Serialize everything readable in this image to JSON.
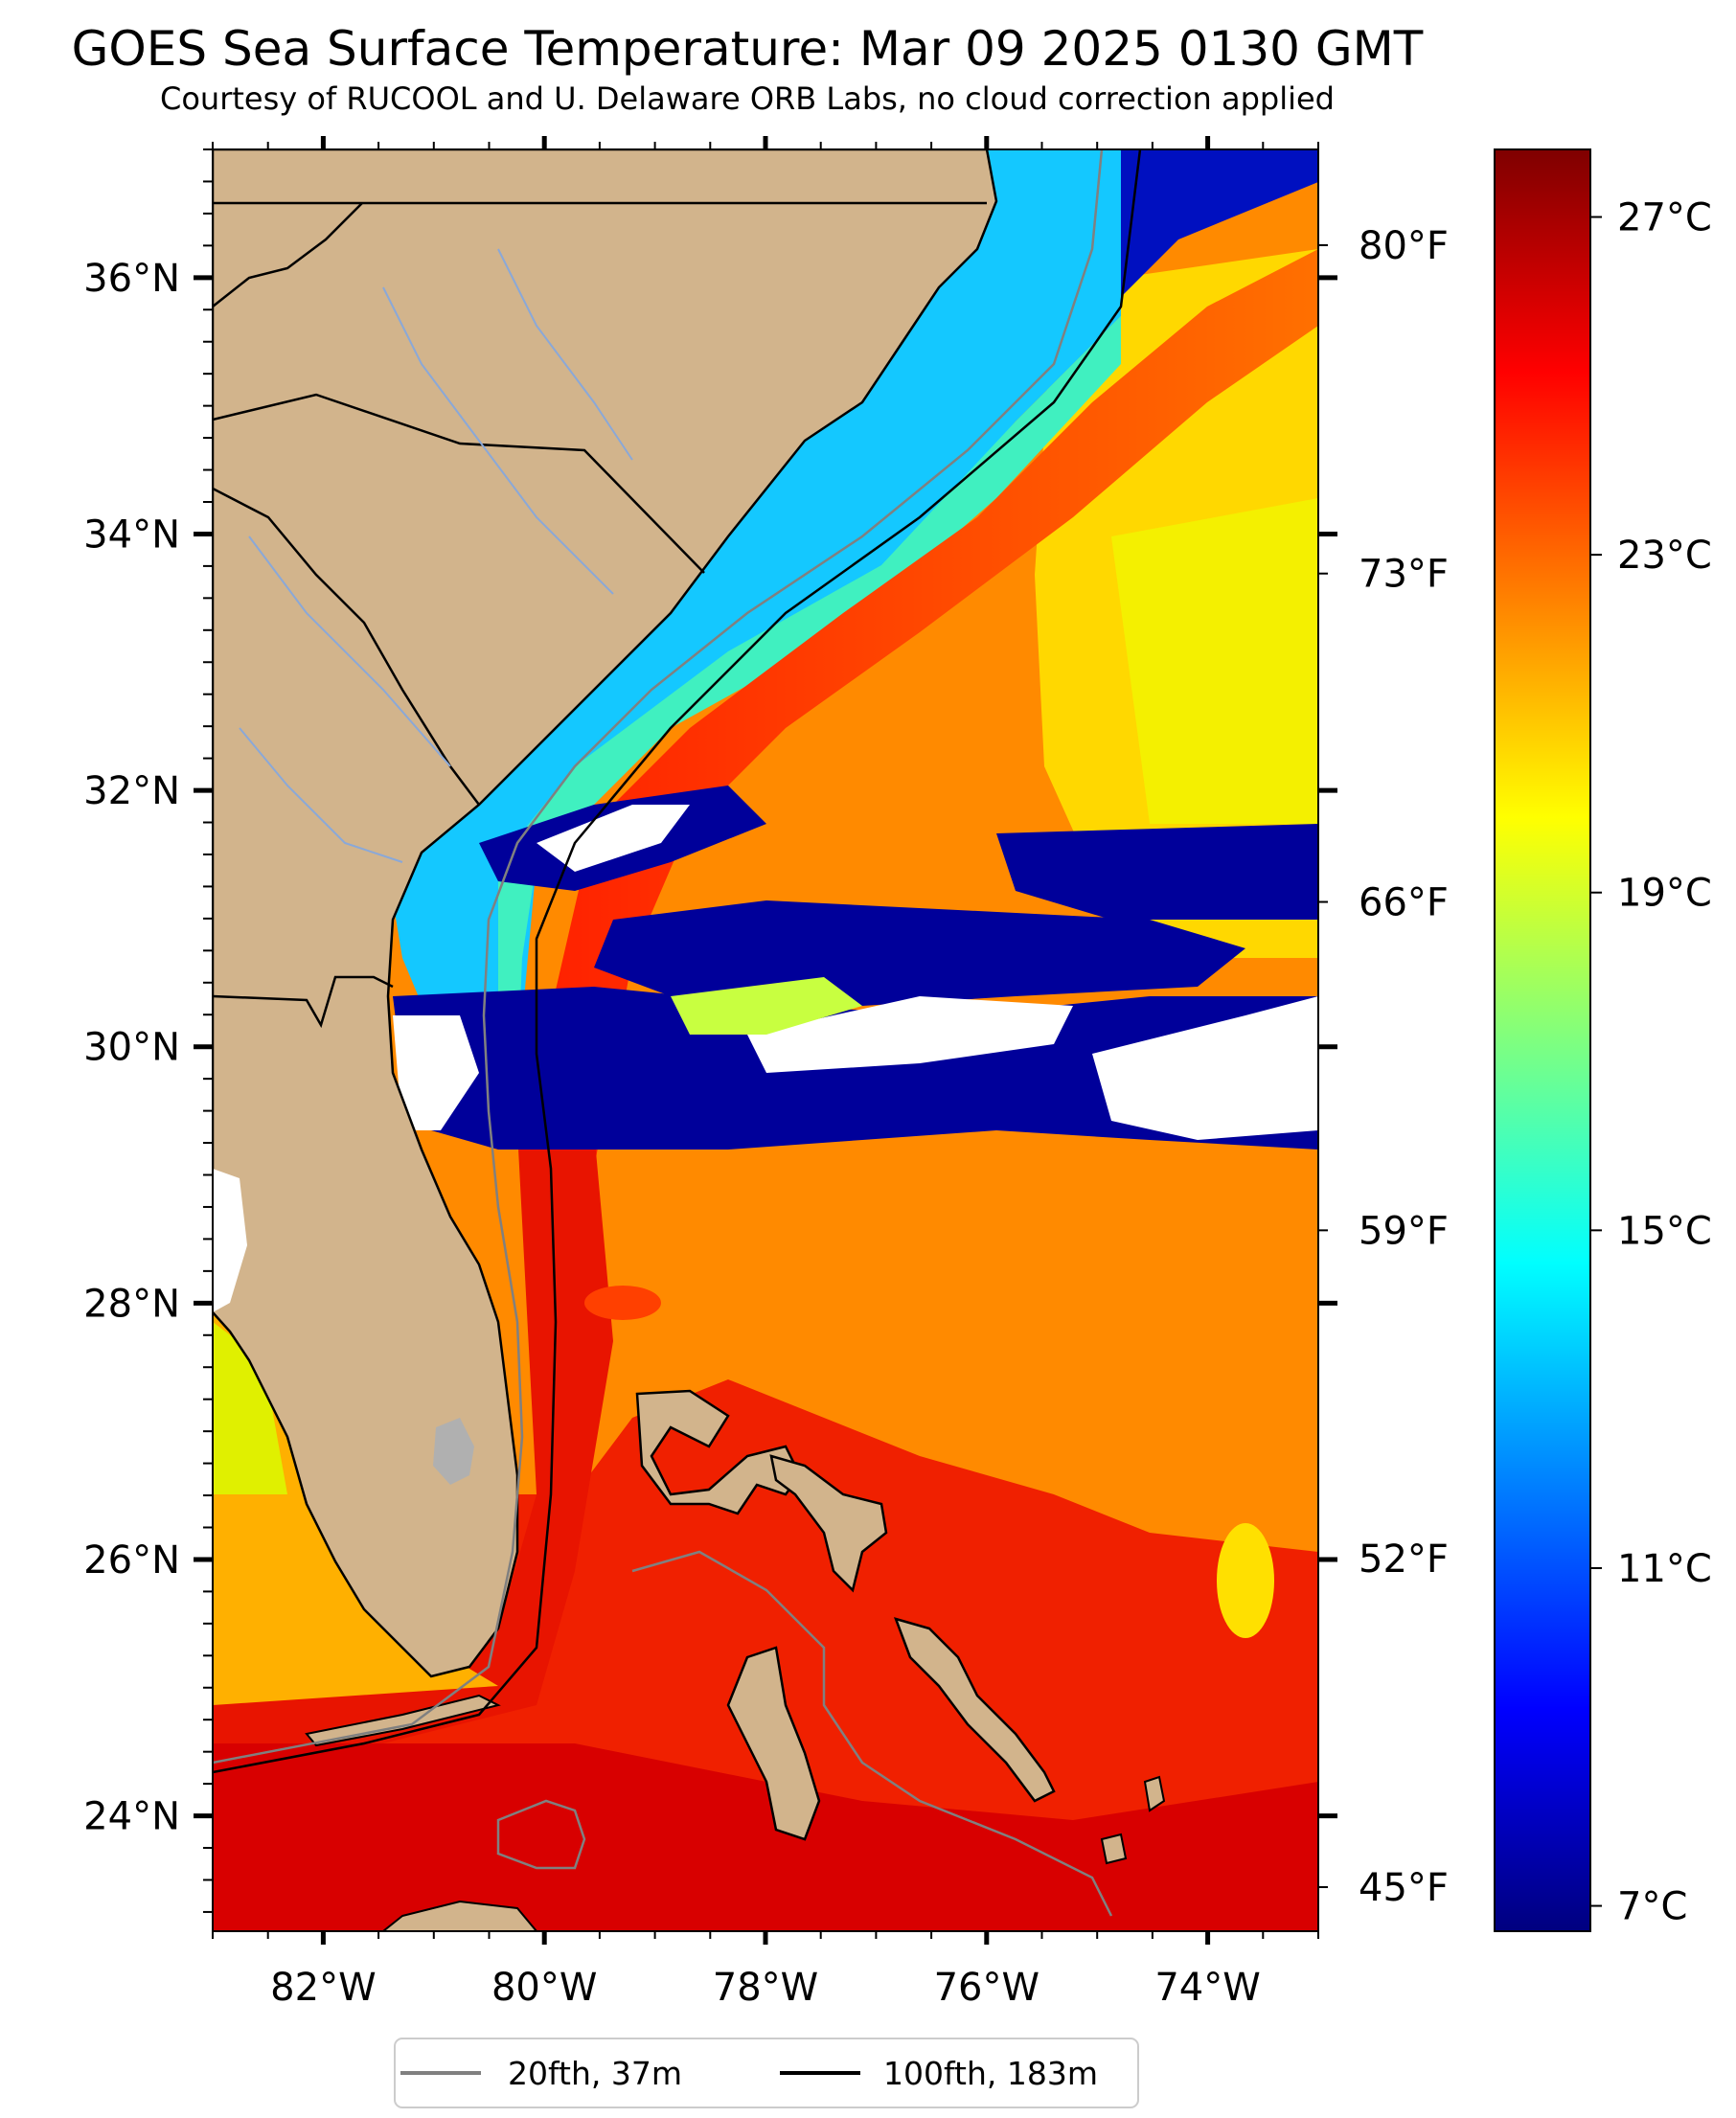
{
  "title": "GOES Sea Surface Temperature: Mar 09 2025 0130 GMT",
  "subtitle": "Courtesy of RUCOOL and U. Delaware ORB Labs, no cloud correction applied",
  "map": {
    "projection": "plate-carree",
    "lon_range": [
      -83,
      -73
    ],
    "lat_range": [
      23.1,
      37
    ],
    "land_color": "#d2b48c",
    "cloud_color": "#ffffff",
    "lon_ticks": [
      {
        "value": -82,
        "label": "82°W"
      },
      {
        "value": -80,
        "label": "80°W"
      },
      {
        "value": -78,
        "label": "78°W"
      },
      {
        "value": -76,
        "label": "76°W"
      },
      {
        "value": -74,
        "label": "74°W"
      }
    ],
    "lat_ticks": [
      {
        "value": 24,
        "label": "24°N"
      },
      {
        "value": 26,
        "label": "26°N"
      },
      {
        "value": 28,
        "label": "28°N"
      },
      {
        "value": 30,
        "label": "30°N"
      },
      {
        "value": 32,
        "label": "32°N"
      },
      {
        "value": 34,
        "label": "34°N"
      },
      {
        "value": 36,
        "label": "36°N"
      }
    ],
    "fahrenheit_ticks": [
      "80°F",
      "73°F",
      "66°F",
      "59°F",
      "52°F",
      "45°F"
    ],
    "fahrenheit_values": [
      80,
      73,
      66,
      59,
      52,
      45
    ]
  },
  "colorbar": {
    "min_c": 6.7,
    "max_c": 27.8,
    "ticks": [
      {
        "value": 27,
        "label": "27°C"
      },
      {
        "value": 23,
        "label": "23°C"
      },
      {
        "value": 19,
        "label": "19°C"
      },
      {
        "value": 15,
        "label": "15°C"
      },
      {
        "value": 11,
        "label": "11°C"
      },
      {
        "value": 7,
        "label": "7°C"
      }
    ],
    "colormap": [
      "#00007f",
      "#0000ff",
      "#007fff",
      "#00ffff",
      "#7fff7f",
      "#ffff00",
      "#ff7f00",
      "#ff0000",
      "#7f0000"
    ]
  },
  "legend": [
    {
      "label": "20fth, 37m",
      "color": "#808080"
    },
    {
      "label": "100fth, 183m",
      "color": "#000000"
    }
  ]
}
